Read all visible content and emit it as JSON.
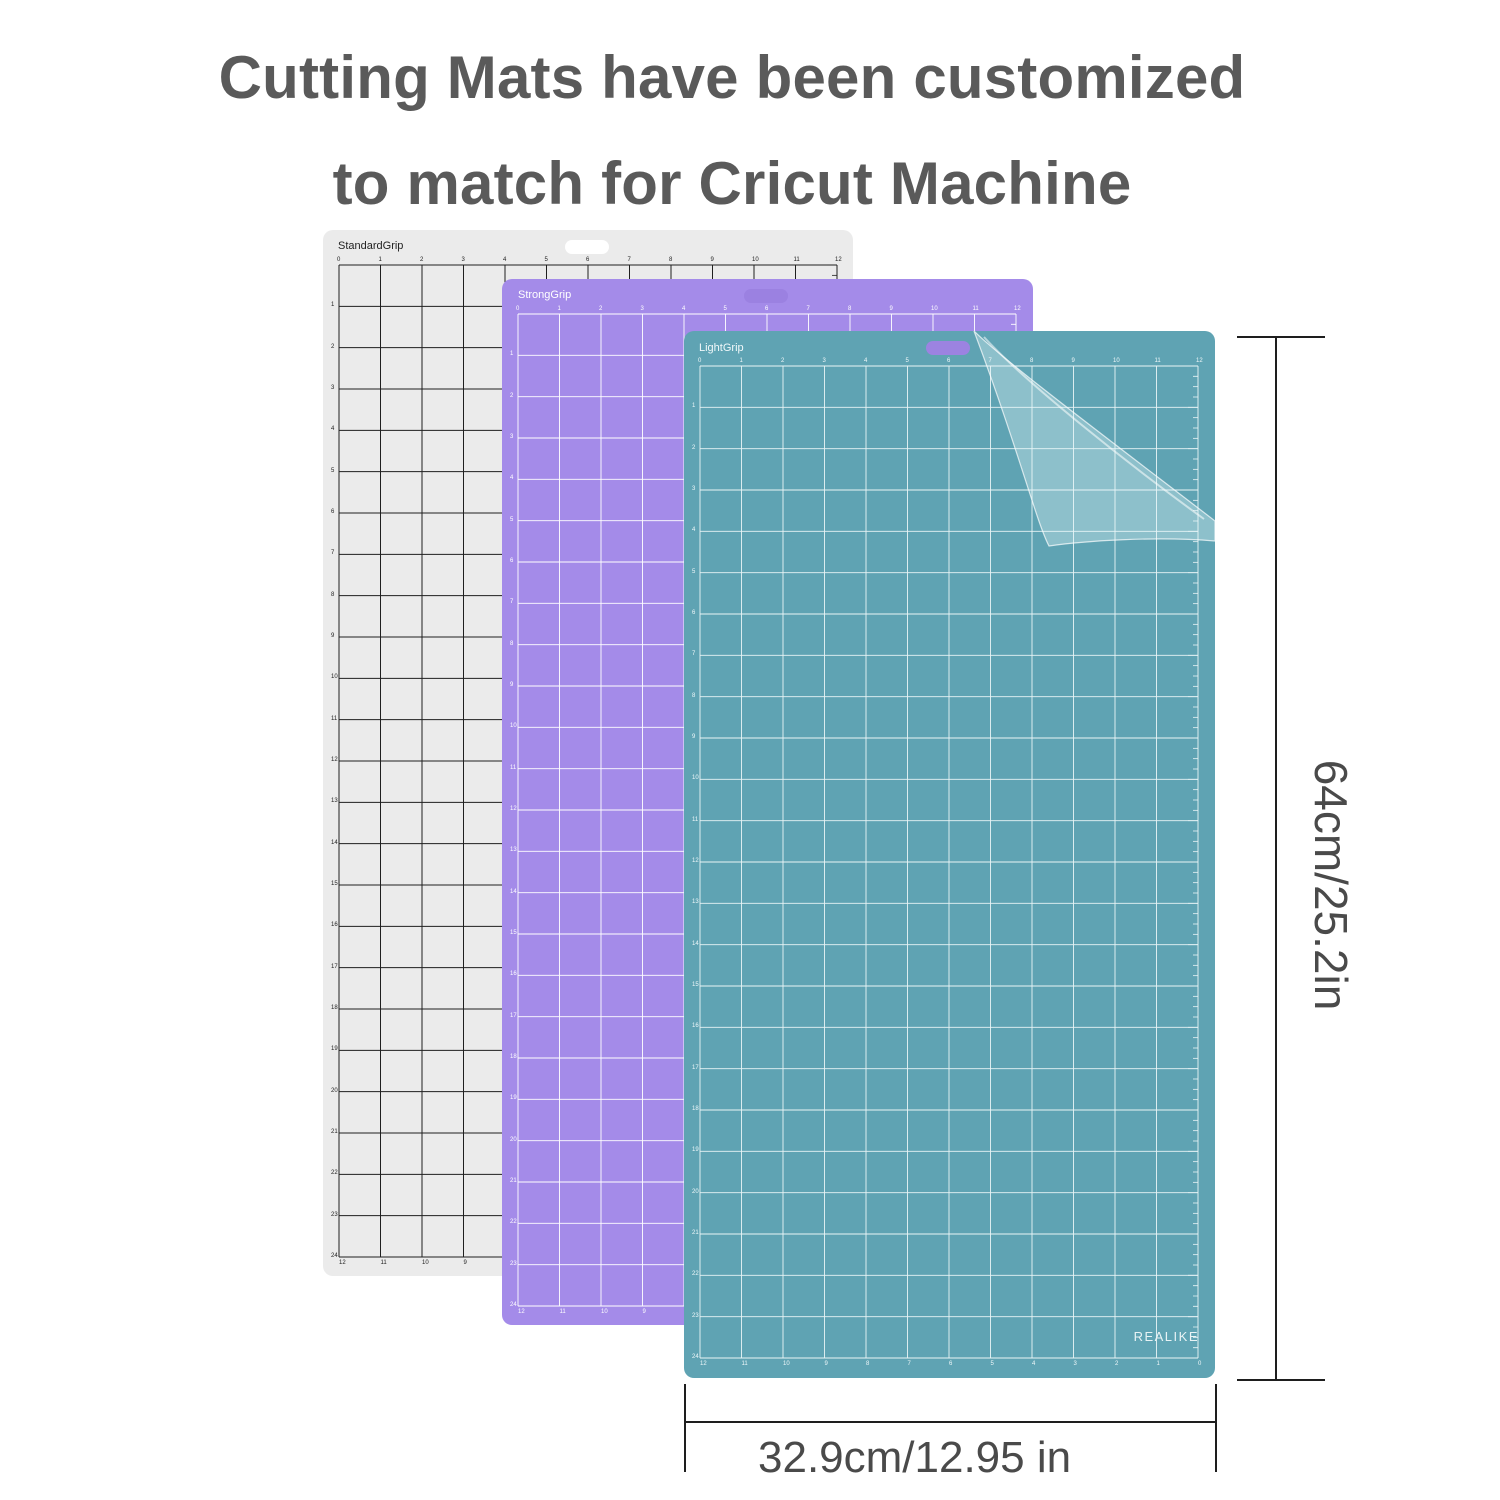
{
  "headline": {
    "line1": "Cutting Mats have been customized",
    "line2": "to match for Cricut Machine"
  },
  "mats": [
    {
      "name": "StandardGrip",
      "color": "#ebebeb",
      "grid_color": "#1f1f1f",
      "text_color": "#222222",
      "top_numbers": [
        "0",
        "1",
        "2",
        "3",
        "4",
        "5",
        "6",
        "7",
        "8",
        "9",
        "10",
        "11",
        "12"
      ],
      "side_numbers": [
        "1",
        "2",
        "3",
        "4",
        "5",
        "6",
        "7",
        "8",
        "9",
        "10",
        "11",
        "12",
        "13",
        "14",
        "15",
        "16",
        "17",
        "18",
        "19",
        "20",
        "21",
        "22",
        "23",
        "24"
      ],
      "bottom_numbers": [
        "12",
        "11",
        "10",
        "9"
      ]
    },
    {
      "name": "StrongGrip",
      "color": "#a48be9",
      "grid_color": "#ffffff",
      "text_color": "#ffffff",
      "top_numbers": [
        "0",
        "1",
        "2",
        "3",
        "4",
        "5",
        "6",
        "7",
        "8",
        "9",
        "10",
        "11",
        "12"
      ],
      "side_numbers": [
        "1",
        "2",
        "3",
        "4",
        "5",
        "6",
        "7",
        "8",
        "9",
        "10",
        "11",
        "12",
        "13",
        "14",
        "15",
        "16",
        "17",
        "18",
        "19",
        "20",
        "21",
        "22",
        "23",
        "24"
      ],
      "bottom_numbers": [
        "12",
        "11",
        "10",
        "9"
      ]
    },
    {
      "name": "LightGrip",
      "color": "#5fa3b3",
      "grid_color": "#e9f4f6",
      "text_color": "#f0f8fa",
      "top_numbers": [
        "0",
        "1",
        "2",
        "3",
        "4",
        "5",
        "6",
        "7",
        "8",
        "9",
        "10",
        "11",
        "12"
      ],
      "side_numbers": [
        "1",
        "2",
        "3",
        "4",
        "5",
        "6",
        "7",
        "8",
        "9",
        "10",
        "11",
        "12",
        "13",
        "14",
        "15",
        "16",
        "17",
        "18",
        "19",
        "20",
        "21",
        "22",
        "23",
        "24"
      ],
      "bottom_numbers": [
        "12",
        "11",
        "10",
        "9",
        "8",
        "7",
        "6",
        "5",
        "4",
        "3",
        "2",
        "1",
        "0"
      ],
      "brand": "REALIKE"
    }
  ],
  "dimensions": {
    "height": "64cm/25.2in",
    "width": "32.9cm/12.95 in"
  }
}
